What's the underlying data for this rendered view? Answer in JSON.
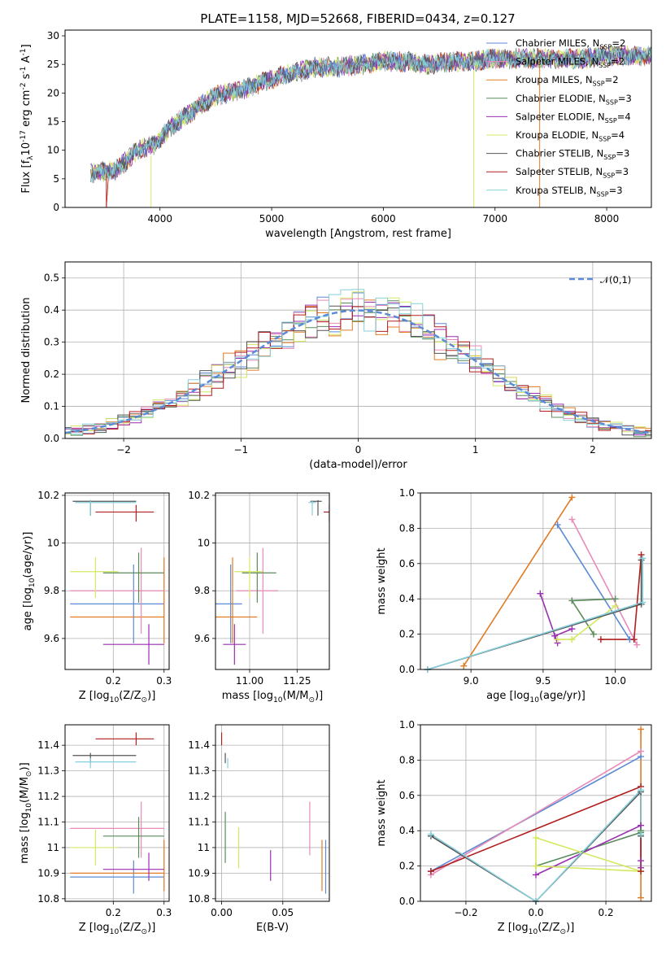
{
  "figure": {
    "title": "PLATE=1158, MJD=52668, FIBERID=0434, z=0.127"
  },
  "colors": {
    "chabrier_miles": "#5b8ad6",
    "salpeter_miles": "#e88ab8",
    "kroupa_miles": "#e07b24",
    "chabrier_elodie": "#5a8a5a",
    "salpeter_elodie": "#9a2fb0",
    "kroupa_elodie": "#d6e860",
    "chabrier_stelib": "#555555",
    "salpeter_stelib": "#b01e1e",
    "kroupa_stelib": "#86d0dc",
    "gauss": "#5b8ad6"
  },
  "chart_data": [
    {
      "id": "spectrum",
      "type": "line",
      "xlabel": "wavelength [Angstrom, rest frame]",
      "ylabel": "Flux [f$_\\lambda$10$^{-17}$ erg cm$^{-2}$ s$^{-1}$ A$^{-1}$]",
      "xlim": [
        3150,
        8400
      ],
      "ylim": [
        0,
        31
      ],
      "xticks": [
        4000,
        5000,
        6000,
        7000,
        8000
      ],
      "yticks": [
        0,
        5,
        10,
        15,
        20,
        25,
        30
      ],
      "x_range_data": [
        3380,
        8400
      ],
      "continuum_x": [
        3380,
        3600,
        3800,
        3950,
        4100,
        4300,
        4500,
        4800,
        5000,
        5200,
        5400,
        5600,
        5800,
        6000,
        6200,
        6400,
        6600,
        6800,
        7000,
        7200,
        7400,
        7600,
        7800,
        8000,
        8200,
        8400
      ],
      "continuum_y": [
        6,
        6.5,
        10,
        11,
        14,
        17,
        19.5,
        21,
        22.5,
        23.5,
        24.5,
        24.5,
        25,
        25.5,
        25.5,
        25,
        25.5,
        25.5,
        26,
        26,
        26,
        26,
        26,
        26.5,
        26.5,
        26.5
      ],
      "legend": [
        {
          "key": "chabrier_miles",
          "label": "Chabrier MILES, N$_{SSP}$=2"
        },
        {
          "key": "salpeter_miles",
          "label": "Salpeter MILES, N$_{SSP}$=2"
        },
        {
          "key": "kroupa_miles",
          "label": "Kroupa MILES, N$_{SSP}$=2"
        },
        {
          "key": "chabrier_elodie",
          "label": "Chabrier ELODIE, N$_{SSP}$=3"
        },
        {
          "key": "salpeter_elodie",
          "label": "Salpeter ELODIE, N$_{SSP}$=4"
        },
        {
          "key": "kroupa_elodie",
          "label": "Kroupa ELODIE, N$_{SSP}$=4"
        },
        {
          "key": "chabrier_stelib",
          "label": "Chabrier STELIB, N$_{SSP}$=3"
        },
        {
          "key": "salpeter_stelib",
          "label": "Salpeter STELIB, N$_{SSP}$=3"
        },
        {
          "key": "kroupa_stelib",
          "label": "Kroupa STELIB, N$_{SSP}$=3"
        }
      ],
      "legend_position": "top-right",
      "grid": false
    },
    {
      "id": "residuals",
      "type": "histogram",
      "xlabel": "(data-model)/error",
      "ylabel": "Normed distribution",
      "xlim": [
        -2.5,
        2.5
      ],
      "ylim": [
        0,
        0.55
      ],
      "xticks": [
        -2,
        -1,
        0,
        1,
        2
      ],
      "xticklabels": [
        "−2",
        "−1",
        "0",
        "1",
        "2"
      ],
      "yticks": [
        0.0,
        0.1,
        0.2,
        0.3,
        0.4,
        0.5
      ],
      "yticklabels": [
        "0.0",
        "0.1",
        "0.2",
        "0.3",
        "0.4",
        "0.5"
      ],
      "grid": true,
      "gauss_label": "$\\mathcal{N}(0,1)$",
      "gauss_legend_position": "top-right",
      "bin_width": 0.1
    },
    {
      "id": "age_vs_Z",
      "type": "errorbar",
      "xlabel": "Z [log$_{10}$(Z/Z$_\\odot$)]",
      "ylabel": "age  [log$_{10}$(age/yr)]",
      "xlim": [
        0.105,
        0.31
      ],
      "ylim": [
        9.47,
        10.21
      ],
      "xticks": [
        0.2,
        0.3
      ],
      "yticks": [
        9.6,
        9.8,
        10.0,
        10.2
      ],
      "grid": true,
      "points": [
        {
          "key": "chabrier_miles",
          "x": 0.24,
          "y": 9.745,
          "xerr": [
            0.115,
            0.3
          ],
          "yerr": [
            9.58,
            9.91
          ]
        },
        {
          "key": "kroupa_miles",
          "x": 0.3,
          "y": 9.69,
          "xerr": [
            0.115,
            0.3
          ],
          "yerr": [
            9.58,
            9.94
          ]
        },
        {
          "key": "salpeter_miles",
          "x": 0.255,
          "y": 9.8,
          "xerr": [
            0.115,
            0.3
          ],
          "yerr": [
            9.62,
            9.98
          ]
        },
        {
          "key": "chabrier_elodie",
          "x": 0.25,
          "y": 9.875,
          "xerr": [
            0.18,
            0.3
          ],
          "yerr": [
            9.75,
            9.96
          ]
        },
        {
          "key": "salpeter_elodie",
          "x": 0.27,
          "y": 9.575,
          "xerr": [
            0.18,
            0.3
          ],
          "yerr": [
            9.49,
            9.66
          ]
        },
        {
          "key": "kroupa_elodie",
          "x": 0.165,
          "y": 9.88,
          "xerr": [
            0.115,
            0.21
          ],
          "yerr": [
            9.77,
            9.94
          ]
        },
        {
          "key": "chabrier_stelib",
          "x": 0.155,
          "y": 10.175,
          "xerr": [
            0.12,
            0.245
          ],
          "yerr": [
            10.115,
            10.18
          ]
        },
        {
          "key": "salpeter_stelib",
          "x": 0.245,
          "y": 10.13,
          "xerr": [
            0.165,
            0.28
          ],
          "yerr": [
            10.09,
            10.16
          ]
        },
        {
          "key": "kroupa_stelib",
          "x": 0.155,
          "y": 10.17,
          "xerr": [
            0.125,
            0.245
          ],
          "yerr": [
            10.115,
            10.18
          ]
        }
      ]
    },
    {
      "id": "age_vs_mass",
      "type": "errorbar",
      "xlabel": "mass [log$_{10}$(M/M$_\\odot$)]",
      "ylabel": "",
      "xlim": [
        10.82,
        11.42
      ],
      "ylim": [
        9.47,
        10.21
      ],
      "xticks": [
        11.0,
        11.25
      ],
      "xticklabels": [
        "11.00",
        "11.25"
      ],
      "yticks": [
        9.6,
        9.8,
        10.0,
        10.2
      ],
      "grid": true,
      "points": [
        {
          "key": "chabrier_miles",
          "x": 10.9,
          "y": 9.745,
          "xerr": [
            10.82,
            10.96
          ],
          "yerr": [
            9.58,
            9.91
          ]
        },
        {
          "key": "kroupa_miles",
          "x": 10.91,
          "y": 9.69,
          "xerr": [
            10.82,
            11.04
          ],
          "yerr": [
            9.58,
            9.94
          ]
        },
        {
          "key": "salpeter_miles",
          "x": 11.07,
          "y": 9.8,
          "xerr": [
            10.93,
            11.15
          ],
          "yerr": [
            9.62,
            9.98
          ]
        },
        {
          "key": "chabrier_elodie",
          "x": 11.04,
          "y": 9.875,
          "xerr": [
            10.96,
            11.14
          ],
          "yerr": [
            9.75,
            9.96
          ]
        },
        {
          "key": "salpeter_elodie",
          "x": 10.92,
          "y": 9.575,
          "xerr": [
            10.86,
            10.98
          ],
          "yerr": [
            9.49,
            9.66
          ]
        },
        {
          "key": "kroupa_elodie",
          "x": 11.0,
          "y": 9.88,
          "xerr": [
            10.92,
            11.07
          ],
          "yerr": [
            9.77,
            9.94
          ]
        },
        {
          "key": "chabrier_stelib",
          "x": 11.36,
          "y": 10.175,
          "xerr": [
            11.32,
            11.38
          ],
          "yerr": [
            10.115,
            10.18
          ]
        },
        {
          "key": "salpeter_stelib",
          "x": 11.42,
          "y": 10.13,
          "xerr": [
            11.39,
            11.45
          ],
          "yerr": [
            10.09,
            10.16
          ]
        },
        {
          "key": "kroupa_stelib",
          "x": 11.33,
          "y": 10.17,
          "xerr": [
            11.31,
            11.35
          ],
          "yerr": [
            10.115,
            10.18
          ]
        }
      ]
    },
    {
      "id": "weight_vs_age",
      "type": "line",
      "xlabel": "age  [log$_{10}$(age/yr)]",
      "ylabel": "mass weight",
      "xlim": [
        8.65,
        10.25
      ],
      "ylim": [
        0.0,
        1.0
      ],
      "xticks": [
        9.0,
        9.5,
        10.0
      ],
      "xticklabels": [
        "9.0",
        "9.5",
        "10.0"
      ],
      "yticks": [
        0.0,
        0.2,
        0.4,
        0.6,
        0.8,
        1.0
      ],
      "yticklabels": [
        "0.0",
        "0.2",
        "0.4",
        "0.6",
        "0.8",
        "1.0"
      ],
      "grid": true,
      "series": [
        {
          "key": "chabrier_miles",
          "x": [
            9.6,
            10.1
          ],
          "y": [
            0.82,
            0.17
          ]
        },
        {
          "key": "salpeter_miles",
          "x": [
            9.7,
            10.15
          ],
          "y": [
            0.85,
            0.14
          ]
        },
        {
          "key": "kroupa_miles",
          "x": [
            8.95,
            9.7
          ],
          "y": [
            0.02,
            0.975
          ]
        },
        {
          "key": "chabrier_elodie",
          "x": [
            9.85,
            9.7,
            10.0
          ],
          "y": [
            0.2,
            0.39,
            0.4
          ]
        },
        {
          "key": "salpeter_elodie",
          "x": [
            9.48,
            9.6,
            9.58,
            9.7
          ],
          "y": [
            0.43,
            0.15,
            0.19,
            0.23
          ]
        },
        {
          "key": "kroupa_elodie",
          "x": [
            9.6,
            9.7,
            10.0,
            9.7
          ],
          "y": [
            0.17,
            0.17,
            0.36,
            0.17
          ]
        },
        {
          "key": "chabrier_stelib",
          "x": [
            8.7,
            10.18,
            10.18
          ],
          "y": [
            0.0,
            0.37,
            0.62
          ]
        },
        {
          "key": "salpeter_stelib",
          "x": [
            9.9,
            10.13,
            10.18
          ],
          "y": [
            0.17,
            0.17,
            0.65
          ]
        },
        {
          "key": "kroupa_stelib",
          "x": [
            8.7,
            10.19,
            10.19
          ],
          "y": [
            0.0,
            0.38,
            0.63
          ]
        }
      ]
    },
    {
      "id": "mass_vs_Z",
      "type": "errorbar",
      "xlabel": "Z [log$_{10}$(Z/Z$_\\odot$)]",
      "ylabel": "mass [log$_{10}$(M/M$_\\odot$)]",
      "xlim": [
        0.105,
        0.31
      ],
      "ylim": [
        10.79,
        11.48
      ],
      "xticks": [
        0.2,
        0.3
      ],
      "yticks": [
        10.8,
        10.9,
        11.0,
        11.1,
        11.2,
        11.3,
        11.4
      ],
      "grid": true,
      "points": [
        {
          "key": "chabrier_miles",
          "x": 0.24,
          "y": 10.885,
          "xerr": [
            0.115,
            0.3
          ],
          "yerr": [
            10.82,
            10.95
          ]
        },
        {
          "key": "kroupa_miles",
          "x": 0.3,
          "y": 10.9,
          "xerr": [
            0.115,
            0.3
          ],
          "yerr": [
            10.83,
            11.03
          ]
        },
        {
          "key": "salpeter_miles",
          "x": 0.255,
          "y": 11.075,
          "xerr": [
            0.115,
            0.3
          ],
          "yerr": [
            10.96,
            11.18
          ]
        },
        {
          "key": "chabrier_elodie",
          "x": 0.25,
          "y": 11.045,
          "xerr": [
            0.18,
            0.3
          ],
          "yerr": [
            10.96,
            11.12
          ]
        },
        {
          "key": "salpeter_elodie",
          "x": 0.27,
          "y": 10.915,
          "xerr": [
            0.18,
            0.3
          ],
          "yerr": [
            10.87,
            10.98
          ]
        },
        {
          "key": "kroupa_elodie",
          "x": 0.165,
          "y": 11.0,
          "xerr": [
            0.115,
            0.21
          ],
          "yerr": [
            10.93,
            11.07
          ]
        },
        {
          "key": "chabrier_stelib",
          "x": 0.155,
          "y": 11.36,
          "xerr": [
            0.12,
            0.245
          ],
          "yerr": [
            11.33,
            11.37
          ]
        },
        {
          "key": "salpeter_stelib",
          "x": 0.245,
          "y": 11.425,
          "xerr": [
            0.165,
            0.28
          ],
          "yerr": [
            11.4,
            11.45
          ]
        },
        {
          "key": "kroupa_stelib",
          "x": 0.155,
          "y": 11.335,
          "xerr": [
            0.125,
            0.245
          ],
          "yerr": [
            11.31,
            11.35
          ]
        }
      ]
    },
    {
      "id": "mass_vs_ebv",
      "type": "errorbar",
      "xlabel": "E(B-V)",
      "ylabel": "",
      "xlim": [
        -0.005,
        0.088
      ],
      "ylim": [
        10.79,
        11.48
      ],
      "xticks": [
        0.0,
        0.05
      ],
      "xticklabels": [
        "0.00",
        "0.05"
      ],
      "yticks": [
        10.8,
        10.9,
        11.0,
        11.1,
        11.2,
        11.3,
        11.4
      ],
      "grid": true,
      "points": [
        {
          "key": "chabrier_miles",
          "x": 0.085,
          "y": 10.885,
          "yerr": [
            10.82,
            11.03
          ]
        },
        {
          "key": "kroupa_miles",
          "x": 0.082,
          "y": 10.9,
          "yerr": [
            10.83,
            11.03
          ]
        },
        {
          "key": "salpeter_miles",
          "x": 0.072,
          "y": 11.075,
          "yerr": [
            10.97,
            11.18
          ]
        },
        {
          "key": "chabrier_elodie",
          "x": 0.003,
          "y": 11.045,
          "yerr": [
            10.94,
            11.14
          ]
        },
        {
          "key": "salpeter_elodie",
          "x": 0.04,
          "y": 10.915,
          "yerr": [
            10.87,
            10.99
          ]
        },
        {
          "key": "kroupa_elodie",
          "x": 0.014,
          "y": 11.0,
          "yerr": [
            10.92,
            11.08
          ]
        },
        {
          "key": "chabrier_stelib",
          "x": 0.003,
          "y": 11.36,
          "yerr": [
            11.33,
            11.37
          ]
        },
        {
          "key": "salpeter_stelib",
          "x": 0.0,
          "y": 11.425,
          "yerr": [
            11.4,
            11.45
          ]
        },
        {
          "key": "kroupa_stelib",
          "x": 0.005,
          "y": 11.335,
          "yerr": [
            11.31,
            11.35
          ]
        }
      ]
    },
    {
      "id": "weight_vs_Z",
      "type": "line",
      "xlabel": "Z [log$_{10}$(Z/Z$_\\odot$)]",
      "ylabel": "mass weight",
      "xlim": [
        -0.33,
        0.33
      ],
      "ylim": [
        0.0,
        1.0
      ],
      "xticks": [
        -0.2,
        0.0,
        0.2
      ],
      "xticklabels": [
        "−0.2",
        "0.0",
        "0.2"
      ],
      "yticks": [
        0.0,
        0.2,
        0.4,
        0.6,
        0.8,
        1.0
      ],
      "yticklabels": [
        "0.0",
        "0.2",
        "0.4",
        "0.6",
        "0.8",
        "1.0"
      ],
      "grid": true,
      "series": [
        {
          "key": "chabrier_miles",
          "x": [
            -0.3,
            0.3
          ],
          "y": [
            0.17,
            0.82
          ]
        },
        {
          "key": "salpeter_miles",
          "x": [
            -0.3,
            0.3
          ],
          "y": [
            0.15,
            0.85
          ]
        },
        {
          "key": "kroupa_miles",
          "x": [
            0.3,
            0.3
          ],
          "y": [
            0.02,
            0.975
          ]
        },
        {
          "key": "chabrier_elodie",
          "x": [
            0.0,
            0.3,
            0.3
          ],
          "y": [
            0.2,
            0.39,
            0.4
          ]
        },
        {
          "key": "salpeter_elodie",
          "x": [
            0.0,
            0.3,
            0.3,
            0.3
          ],
          "y": [
            0.15,
            0.43,
            0.19,
            0.23
          ]
        },
        {
          "key": "kroupa_elodie",
          "x": [
            0.0,
            0.0,
            0.3,
            0.0
          ],
          "y": [
            0.2,
            0.36,
            0.17,
            0.2
          ]
        },
        {
          "key": "chabrier_stelib",
          "x": [
            -0.3,
            0.0,
            0.3,
            0.3
          ],
          "y": [
            0.37,
            0.0,
            0.62,
            0.37
          ]
        },
        {
          "key": "salpeter_stelib",
          "x": [
            -0.3,
            0.3,
            0.3
          ],
          "y": [
            0.17,
            0.65,
            0.17
          ]
        },
        {
          "key": "kroupa_stelib",
          "x": [
            -0.3,
            0.0,
            0.3,
            0.3
          ],
          "y": [
            0.38,
            0.0,
            0.63,
            0.38
          ]
        }
      ]
    }
  ]
}
